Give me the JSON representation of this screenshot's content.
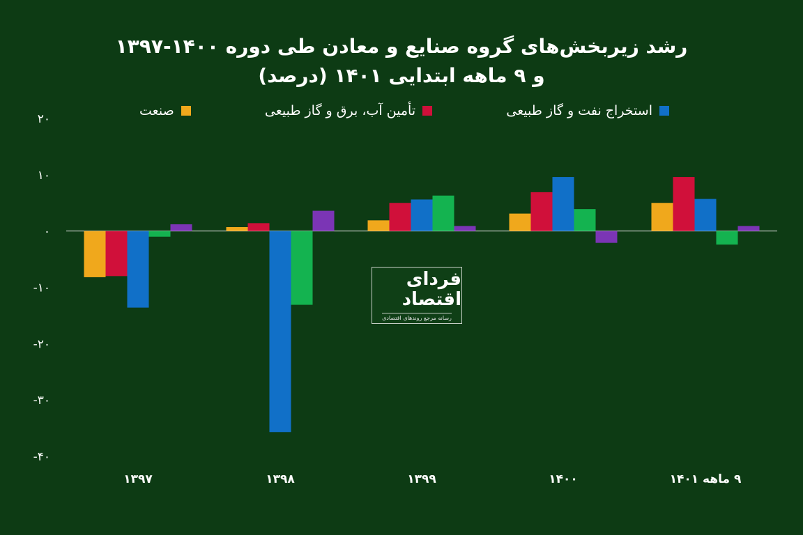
{
  "chart_data": {
    "type": "bar",
    "title_line1": "رشد زیربخش‌های گروه صنایع و معادن طی دوره ۱۴۰۰-۱۳۹۷",
    "title_line2": "و ۹ ماهه ابتدایی ۱۴۰۱ (درصد)",
    "categories": [
      "۱۳۹۷",
      "۱۳۹۸",
      "۱۳۹۹",
      "۱۴۰۰",
      "۹ ماهه ۱۴۰۱"
    ],
    "y_tick_labels": [
      "۲۰",
      "۱۰",
      "۰",
      "-۱۰",
      "-۲۰",
      "-۳۰",
      "-۴۰"
    ],
    "y_ticks": [
      20,
      10,
      0,
      -10,
      -20,
      -30,
      -40
    ],
    "ylim": [
      -40,
      20
    ],
    "legend_placement": "top",
    "series": [
      {
        "name": "صنعت",
        "color": "#f0a81c",
        "values": [
          -8.2,
          0.7,
          1.9,
          3.1,
          5.0
        ]
      },
      {
        "name": "تأمین آب، برق و گاز طبیعی",
        "color": "#d0103a",
        "values": [
          -8.0,
          1.4,
          5.0,
          6.9,
          9.6
        ]
      },
      {
        "name": "استخراج نفت و گاز طبیعی",
        "color": "#1170c8",
        "values": [
          -13.6,
          -35.7,
          5.6,
          9.6,
          5.7
        ]
      },
      {
        "name": "",
        "color": "#14b350",
        "values": [
          -1.0,
          -13.1,
          6.3,
          3.9,
          -2.4
        ]
      },
      {
        "name": "",
        "color": "#7b35b5",
        "values": [
          1.2,
          3.6,
          0.9,
          -2.1,
          0.9
        ]
      }
    ],
    "grid": false
  },
  "logo": {
    "main": "فردای اقتصاد",
    "sub": "رسانه مرجع روندهای اقتصادی"
  }
}
